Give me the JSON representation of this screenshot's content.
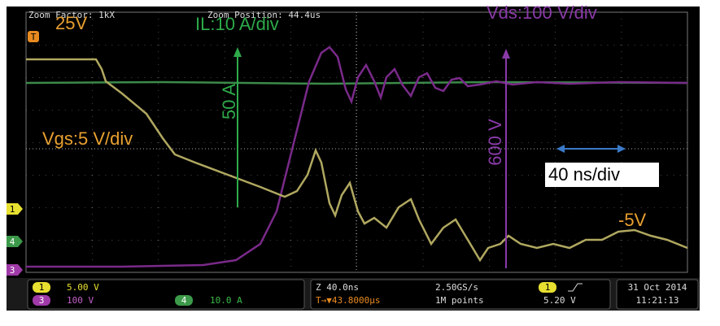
{
  "header": {
    "zoom_factor": "Zoom Factor: 1kX",
    "zoom_position": "Zoom Position: 44.4us"
  },
  "annotations": {
    "vgs_high": "25V",
    "il_scale": "IL:10 A/div",
    "vds_scale": "Vds:100 V/div",
    "il_step": "50 A",
    "vgs_scale": "Vgs:5 V/div",
    "vds_step": "600 V",
    "time_scale": "40 ns/div",
    "vgs_low": "-5V"
  },
  "markers": {
    "trigger": "T",
    "ch1": "1",
    "ch4": "4",
    "ch3": "3"
  },
  "status_bar": {
    "channels": [
      {
        "id": "1",
        "scale": "5.00 V"
      },
      {
        "id": "3",
        "scale": "100 V"
      },
      {
        "id": "4",
        "scale": "10.0 A"
      }
    ],
    "timebase": "Z 40.0ns",
    "sample_rate": "2.50GS/s",
    "trigger_position": "T→▼43.8000µs",
    "record_length": "1M points",
    "trigger_channel": "1",
    "trigger_level": "5.20 V",
    "date": "31 Oct 2014",
    "time": "11:21:13"
  }
}
